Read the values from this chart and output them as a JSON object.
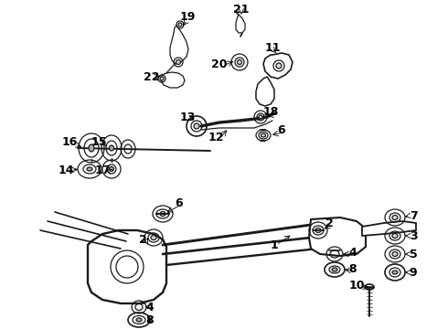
{
  "background_color": "#ffffff",
  "fig_width": 4.9,
  "fig_height": 3.6,
  "dpi": 100,
  "image_b64": ""
}
